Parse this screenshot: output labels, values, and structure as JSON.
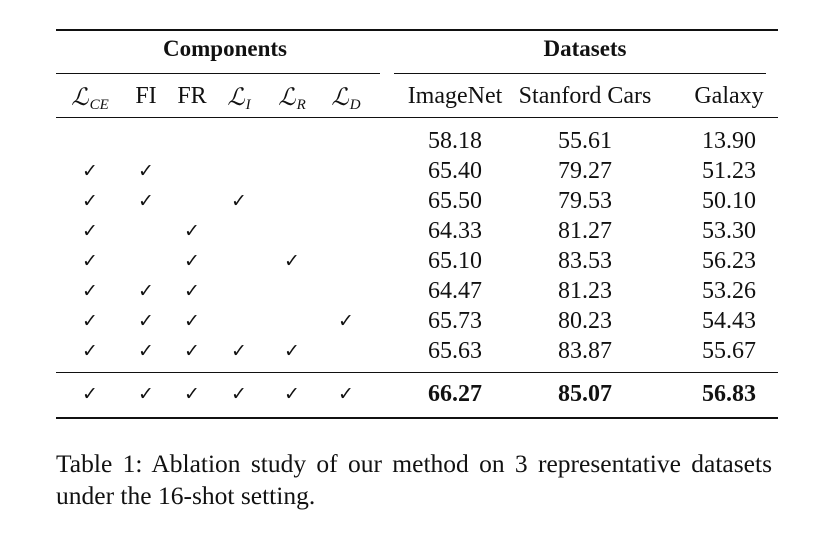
{
  "table": {
    "group_headers": {
      "components": "Components",
      "datasets": "Datasets"
    },
    "component_columns": [
      {
        "base": "ℒ",
        "sub": "CE",
        "math": true
      },
      {
        "base": "FI",
        "sub": "",
        "math": false
      },
      {
        "base": "FR",
        "sub": "",
        "math": false
      },
      {
        "base": "ℒ",
        "sub": "I",
        "math": true
      },
      {
        "base": "ℒ",
        "sub": "R",
        "math": true
      },
      {
        "base": "ℒ",
        "sub": "D",
        "math": true
      }
    ],
    "dataset_columns": [
      "ImageNet",
      "Stanford Cars",
      "Galaxy"
    ],
    "check_symbol": "✓",
    "rows": [
      {
        "checks": [
          false,
          false,
          false,
          false,
          false,
          false
        ],
        "values": [
          "58.18",
          "55.61",
          "13.90"
        ],
        "bold": false
      },
      {
        "checks": [
          true,
          true,
          false,
          false,
          false,
          false
        ],
        "values": [
          "65.40",
          "79.27",
          "51.23"
        ],
        "bold": false
      },
      {
        "checks": [
          true,
          true,
          false,
          true,
          false,
          false
        ],
        "values": [
          "65.50",
          "79.53",
          "50.10"
        ],
        "bold": false
      },
      {
        "checks": [
          true,
          false,
          true,
          false,
          false,
          false
        ],
        "values": [
          "64.33",
          "81.27",
          "53.30"
        ],
        "bold": false
      },
      {
        "checks": [
          true,
          false,
          true,
          false,
          true,
          false
        ],
        "values": [
          "65.10",
          "83.53",
          "56.23"
        ],
        "bold": false
      },
      {
        "checks": [
          true,
          true,
          true,
          false,
          false,
          false
        ],
        "values": [
          "64.47",
          "81.23",
          "53.26"
        ],
        "bold": false
      },
      {
        "checks": [
          true,
          true,
          true,
          false,
          false,
          true
        ],
        "values": [
          "65.73",
          "80.23",
          "54.43"
        ],
        "bold": false
      },
      {
        "checks": [
          true,
          true,
          true,
          true,
          true,
          false
        ],
        "values": [
          "65.63",
          "83.87",
          "55.67"
        ],
        "bold": false
      }
    ],
    "final_row": {
      "checks": [
        true,
        true,
        true,
        true,
        true,
        true
      ],
      "values": [
        "66.27",
        "85.07",
        "56.83"
      ],
      "bold": true
    }
  },
  "caption": "Table 1: Ablation study of our method on 3 representative datasets under the 16-shot setting."
}
